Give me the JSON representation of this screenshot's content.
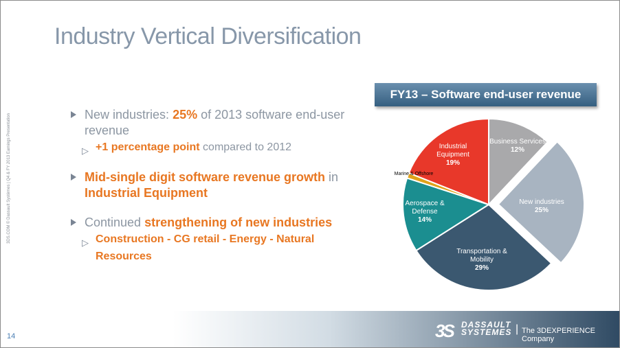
{
  "slide": {
    "title": "Industry Vertical Diversification",
    "side_note": "3DS.COM © Dassault Systèmes | Q4 & FY 2013 Earnings Presentation",
    "page_number": "14"
  },
  "bullets": [
    {
      "parts": [
        "New industries: ",
        "25%",
        " of 2013 software end-user revenue"
      ],
      "sub": [
        [
          "+1 percentage point",
          " compared to 2012"
        ]
      ]
    },
    {
      "parts": [
        "Mid-single digit software revenue growth",
        " in ",
        "Industrial Equipment"
      ]
    },
    {
      "parts": [
        "Continued ",
        "strengthening of new industries"
      ],
      "sub": [
        [
          "Construction - CG retail - Energy - Natural Resources"
        ]
      ]
    }
  ],
  "banner": "FY13 – Software end-user revenue",
  "chart_data": {
    "type": "pie",
    "title": "FY13 – Software end-user revenue",
    "slices": [
      {
        "label": "Business Services",
        "value": 12,
        "display": "12%",
        "color": "#a9a9ab"
      },
      {
        "label": "New industries",
        "value": 25,
        "display": "25%",
        "color": "#a8b4c1",
        "exploded": true
      },
      {
        "label": "Transportation & Mobility",
        "value": 29,
        "display": "29%",
        "color": "#3b5870"
      },
      {
        "label": "Aerospace & Defense",
        "value": 14,
        "display": "14%",
        "color": "#1b8e90"
      },
      {
        "label": "Marine & Offshore",
        "value": 1,
        "display": "",
        "color": "#e0a21a"
      },
      {
        "label": "Industrial Equipment",
        "value": 19,
        "display": "19%",
        "color": "#e8382a"
      }
    ]
  },
  "footer": {
    "brand_line1": "DASSAULT",
    "brand_line2": "SYSTEMES",
    "separator": "|",
    "tagline": "The 3DEXPERIENCE Company"
  }
}
